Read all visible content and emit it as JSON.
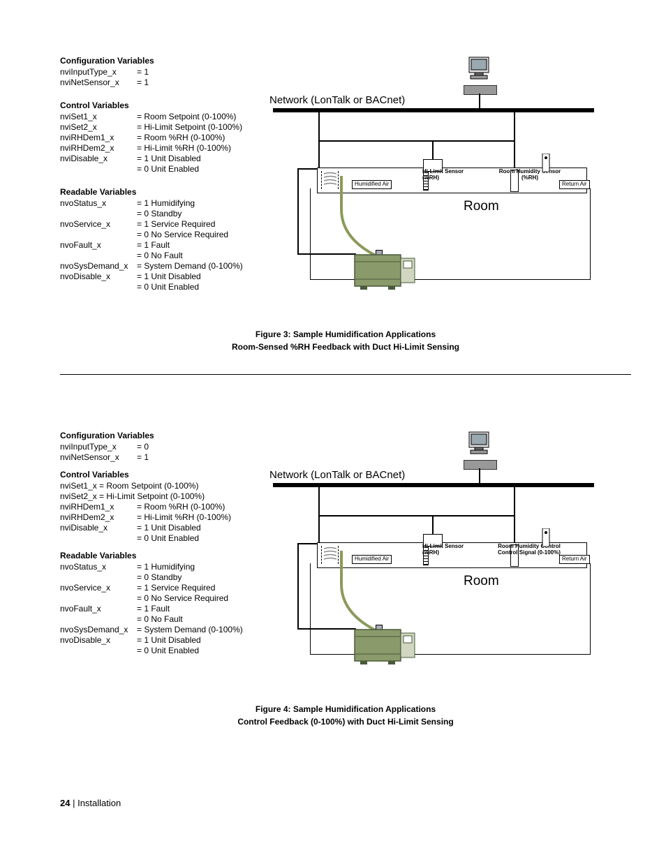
{
  "figure3": {
    "config_heading": "Configuration Variables",
    "config_vars": [
      {
        "label": "nviInputType_x",
        "value": "= 1"
      },
      {
        "label": "nviNetSensor_x",
        "value": "= 1"
      }
    ],
    "control_heading": "Control Variables",
    "control_vars": [
      {
        "label": "nviSet1_x",
        "value": "= Room Setpoint (0-100%)"
      },
      {
        "label": "nviSet2_x",
        "value": "= Hi-Limit Setpoint (0-100%)"
      },
      {
        "label": "nviRHDem1_x",
        "value": "= Room %RH (0-100%)"
      },
      {
        "label": "nviRHDem2_x",
        "value": "= Hi-Limit %RH (0-100%)"
      },
      {
        "label": "nviDisable_x",
        "value": "= 1 Unit Disabled"
      },
      {
        "label": "",
        "value": "= 0 Unit Enabled"
      }
    ],
    "readable_heading": "Readable Variables",
    "readable_vars": [
      {
        "label": "nvoStatus_x",
        "value": "= 1 Humidifying"
      },
      {
        "label": "",
        "value": "= 0 Standby"
      },
      {
        "label": "nvoService_x",
        "value": "= 1 Service Required"
      },
      {
        "label": "",
        "value": "= 0 No Service Required"
      },
      {
        "label": "nvoFault_x",
        "value": "= 1 Fault"
      },
      {
        "label": "",
        "value": "= 0 No Fault"
      },
      {
        "label": "nvoSysDemand_x",
        "value": "= System Demand (0-100%)"
      },
      {
        "label": "nvoDisable_x",
        "value": "= 1 Unit Disabled"
      },
      {
        "label": "",
        "value": "= 0  Unit Enabled"
      }
    ],
    "caption_line1": "Figure 3:  Sample Humidification Applications",
    "caption_line2": "Room-Sensed %RH Feedback with Duct Hi-Limit Sensing",
    "diagram": {
      "network_label": "Network (LonTalk or BACnet)",
      "humidified_air": "Humidified Air",
      "hi_limit": "Hi-Limit Sensor (%RH)",
      "room_sensor": "Room Humidity Sensor (%RH)",
      "return_air": "Return Air",
      "room": "Room"
    }
  },
  "figure4": {
    "config_heading": "Configuration Variables",
    "config_vars": [
      {
        "label": "nviInputType_x",
        "value": "= 0"
      },
      {
        "label": "nviNetSensor_x",
        "value": "= 1"
      }
    ],
    "control_heading": "Control Variables",
    "control_line1": "nviSet1_x = Room Setpoint (0-100%)",
    "control_line2": "nviSet2_x = Hi-Limit Setpoint (0-100%)",
    "control_vars": [
      {
        "label": "nviRHDem1_x",
        "value": "= Room %RH (0-100%)"
      },
      {
        "label": "nviRHDem2_x",
        "value": "= Hi-Limit %RH (0-100%)"
      },
      {
        "label": "nviDisable_x",
        "value": "= 1 Unit Disabled"
      },
      {
        "label": "",
        "value": "= 0 Unit Enabled"
      }
    ],
    "readable_heading": "Readable Variables",
    "readable_vars": [
      {
        "label": "nvoStatus_x",
        "value": "= 1 Humidifying"
      },
      {
        "label": "",
        "value": "= 0 Standby"
      },
      {
        "label": "nvoService_x",
        "value": "= 1 Service Required"
      },
      {
        "label": "",
        "value": "= 0 No Service Required"
      },
      {
        "label": "nvoFault_x",
        "value": "= 1 Fault"
      },
      {
        "label": "",
        "value": "= 0 No Fault"
      },
      {
        "label": "nvoSysDemand_x",
        "value": "= System Demand (0-100%)"
      },
      {
        "label": "nvoDisable_x",
        "value": "= 1 Unit Disabled"
      },
      {
        "label": "",
        "value": "= 0 Unit Enabled"
      }
    ],
    "caption_line1": "Figure 4:  Sample Humidification Applications",
    "caption_line2": "Control Feedback (0-100%) with Duct Hi-Limit Sensing",
    "diagram": {
      "network_label": "Network (LonTalk or BACnet)",
      "humidified_air": "Humidified Air",
      "hi_limit": "Hi-Limit Sensor (%RH)",
      "room_sensor": "Room Humidity Control Control Signal (0-100%)",
      "return_air": "Return Air",
      "room": "Room"
    }
  },
  "footer": {
    "page": "24",
    "sep": "   |   ",
    "section": "Installation"
  },
  "colors": {
    "humidifier_fill": "#8a9a6a",
    "humidifier_stroke": "#4a5a3a",
    "pipe_color": "#8a9a5b"
  }
}
